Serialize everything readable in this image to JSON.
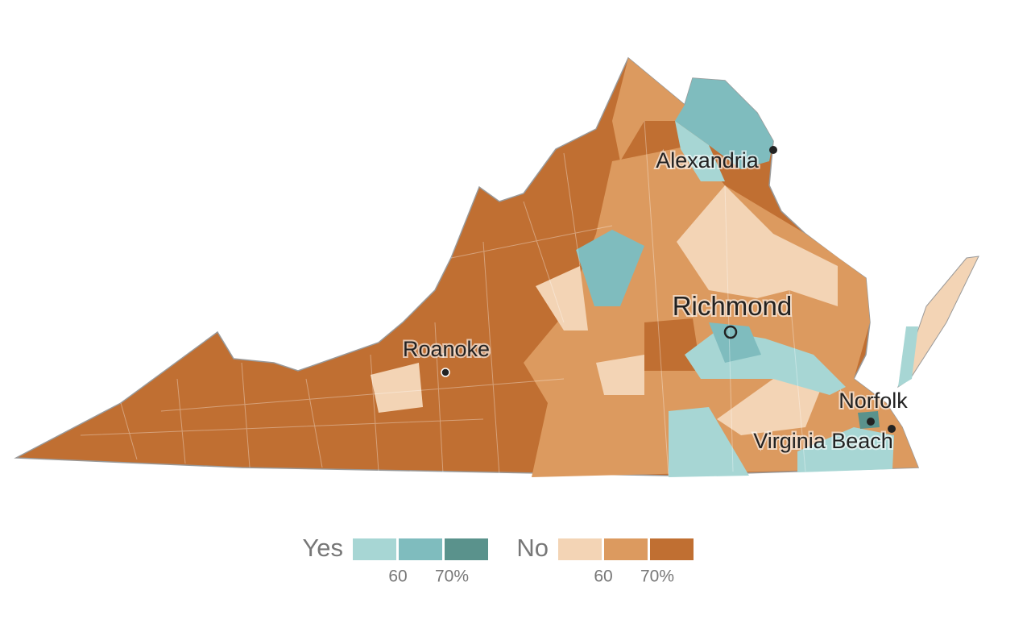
{
  "cities": [
    {
      "label": "Alexandria"
    },
    {
      "label": "Richmond"
    },
    {
      "label": "Roanoke"
    },
    {
      "label": "Norfolk"
    },
    {
      "label": "Virginia Beach"
    }
  ],
  "legend": {
    "lim": [
      50,
      80
    ],
    "groups": [
      {
        "label": "Yes",
        "colors": [
          "#a7d6d4",
          "#7fbcbe",
          "#5a928c"
        ],
        "ticks": [
          60,
          {
            "value": 70,
            "label": "70%"
          }
        ]
      },
      {
        "label": "No",
        "colors": [
          "#f3d4b5",
          "#dc9a5f",
          "#c06f32"
        ],
        "ticks": [
          60,
          {
            "value": 70,
            "label": "70%"
          }
        ]
      }
    ]
  }
}
